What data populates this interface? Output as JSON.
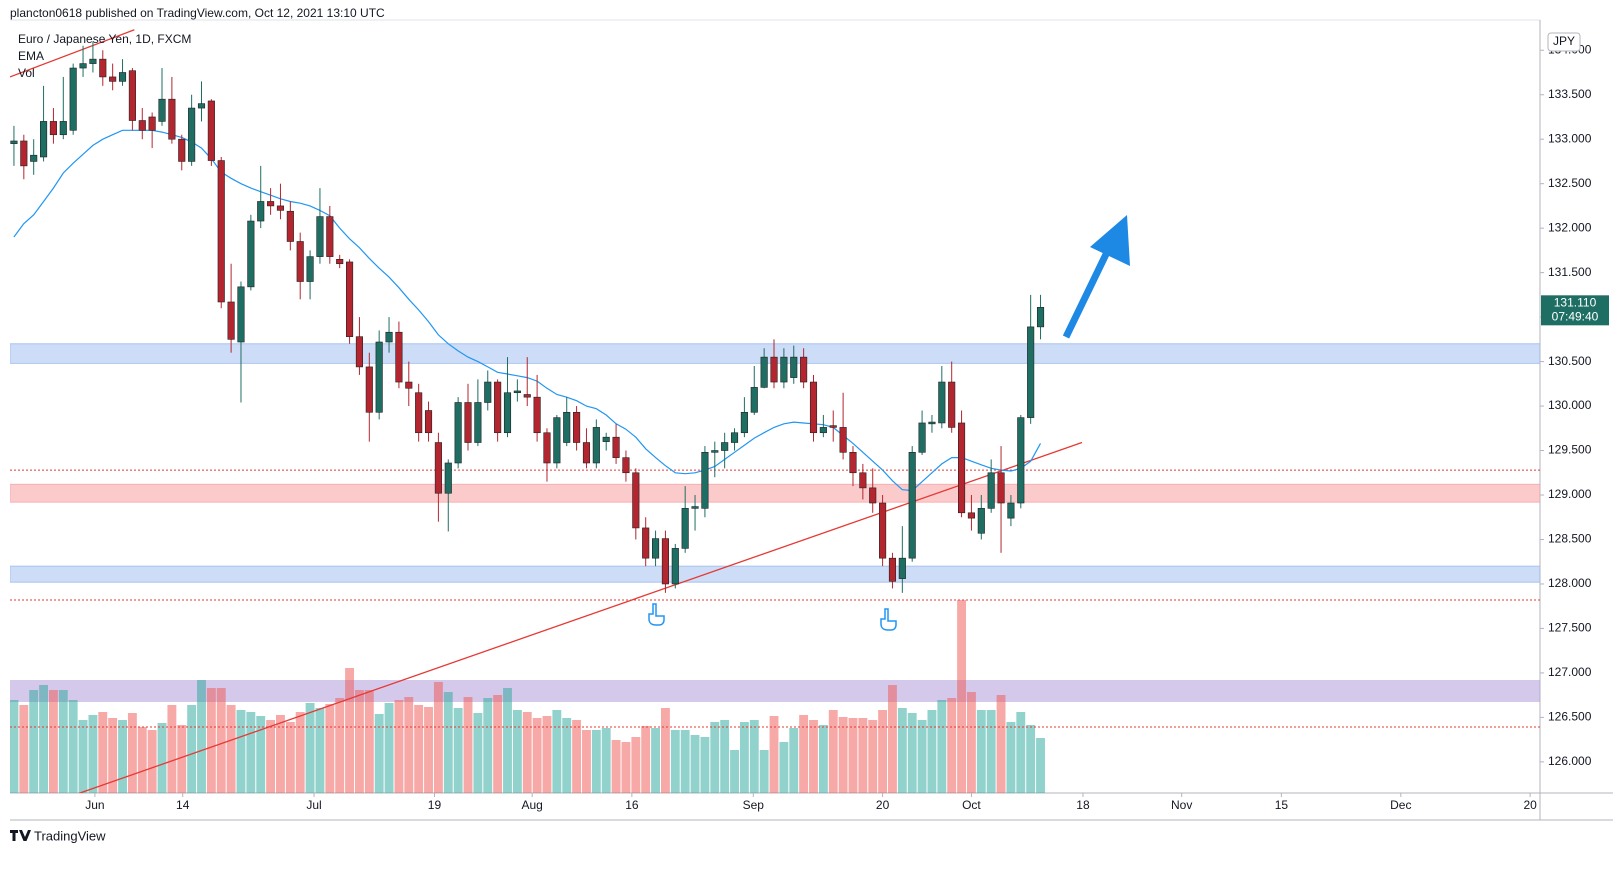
{
  "header": "plancton0618 published on TradingView.com, Oct 12, 2021 13:10 UTC",
  "footer": "TradingView",
  "chart_data": {
    "type": "candlestick",
    "title": "Euro / Japanese Yen, 1D, FXCM",
    "indicators": [
      "EMA",
      "Vol"
    ],
    "currency": "JPY",
    "up_color": "#1e6e64",
    "down_color": "#b3262f",
    "ema_color": "#2196f3",
    "xlim": [
      -0.4,
      154.6
    ],
    "ylim": [
      125.65,
      134.34
    ],
    "vlim": [
      0,
      200
    ],
    "grid": false,
    "xticks": [
      {
        "value": 8.2,
        "label": "Jun"
      },
      {
        "value": 17.1,
        "label": "14"
      },
      {
        "value": 30.4,
        "label": "Jul"
      },
      {
        "value": 42.6,
        "label": "19"
      },
      {
        "value": 52.5,
        "label": "Aug"
      },
      {
        "value": 62.6,
        "label": "16"
      },
      {
        "value": 74.9,
        "label": "Sep"
      },
      {
        "value": 88,
        "label": "20"
      },
      {
        "value": 97,
        "label": "Oct"
      },
      {
        "value": 108.3,
        "label": "18"
      },
      {
        "value": 118.3,
        "label": "Nov"
      },
      {
        "value": 128.4,
        "label": "15"
      },
      {
        "value": 140.5,
        "label": "Dec"
      },
      {
        "value": 153.6,
        "label": "20"
      }
    ],
    "yticks": [
      {
        "value": 134,
        "label": "134.000"
      },
      {
        "value": 133.5,
        "label": "133.500"
      },
      {
        "value": 133,
        "label": "133.000"
      },
      {
        "value": 132.5,
        "label": "132.500"
      },
      {
        "value": 132,
        "label": "132.000"
      },
      {
        "value": 131.5,
        "label": "131.500"
      },
      {
        "value": 131,
        "label": "131.000"
      },
      {
        "value": 130.5,
        "label": "130.500"
      },
      {
        "value": 130,
        "label": "130.000"
      },
      {
        "value": 129.5,
        "label": "129.500"
      },
      {
        "value": 129,
        "label": "129.000"
      },
      {
        "value": 128.5,
        "label": "128.500"
      },
      {
        "value": 128,
        "label": "128.000"
      },
      {
        "value": 127.5,
        "label": "127.500"
      },
      {
        "value": 127,
        "label": "127.000"
      },
      {
        "value": 126.5,
        "label": "126.500"
      },
      {
        "value": 126,
        "label": "126.000"
      }
    ],
    "last_price": {
      "value": 131.11,
      "label": "131.110"
    },
    "countdown": "07:49:40",
    "open": [
      132.95,
      132.98,
      132.75,
      132.8,
      133.2,
      133.05,
      133.1,
      133.8,
      133.85,
      133.9,
      133.7,
      133.65,
      133.77,
      133.21,
      133.25,
      133.2,
      133.45,
      133.0,
      132.75,
      133.35,
      133.43,
      132.76,
      131.17,
      130.72,
      131.34,
      132.08,
      132.3,
      132.25,
      132.19,
      131.85,
      131.4,
      131.68,
      132.13,
      131.65,
      131.62,
      130.78,
      130.44,
      129.93,
      130.72,
      130.83,
      130.27,
      130.15,
      129.95,
      129.59,
      129.02,
      129.36,
      130.04,
      129.59,
      130.04,
      130.27,
      129.7,
      130.15,
      130.13,
      130.1,
      129.7,
      129.36,
      129.59,
      129.93,
      129.59,
      129.36,
      129.6,
      129.65,
      129.42,
      129.25,
      128.63,
      128.29,
      128.51,
      128.0,
      128.4,
      128.85,
      128.85,
      129.48,
      129.5,
      129.59,
      129.7,
      129.93,
      130.21,
      130.55,
      130.27,
      130.32,
      130.55,
      130.27,
      129.7,
      129.78,
      129.76,
      129.48,
      129.25,
      129.08,
      128.91,
      128.29,
      128.06,
      128.29,
      129.48,
      129.8,
      129.81,
      130.27,
      129.81,
      128.8,
      128.57,
      128.85,
      129.25,
      128.74,
      128.91,
      129.87,
      130.89
    ],
    "high": [
      133.15,
      133.05,
      133.0,
      133.6,
      133.35,
      133.7,
      133.85,
      134.05,
      134.1,
      134.0,
      133.85,
      133.9,
      133.8,
      133.35,
      133.3,
      133.8,
      133.7,
      133.05,
      133.5,
      133.65,
      133.45,
      132.8,
      131.6,
      131.4,
      132.15,
      132.7,
      132.45,
      132.5,
      132.3,
      131.95,
      131.75,
      132.45,
      132.25,
      131.7,
      131.65,
      131.0,
      130.6,
      130.85,
      131.0,
      130.95,
      130.5,
      130.25,
      130.05,
      129.7,
      129.4,
      130.1,
      130.25,
      130.3,
      130.4,
      130.3,
      130.55,
      130.3,
      130.55,
      130.35,
      129.75,
      129.9,
      130.1,
      130.0,
      129.75,
      129.85,
      129.7,
      129.8,
      129.5,
      129.3,
      128.75,
      128.6,
      128.6,
      128.45,
      129.1,
      129.0,
      129.55,
      129.6,
      129.7,
      129.75,
      130.1,
      130.45,
      130.65,
      130.75,
      130.65,
      130.68,
      130.65,
      130.35,
      129.9,
      129.95,
      130.15,
      129.55,
      129.35,
      129.3,
      129.0,
      128.35,
      128.65,
      129.55,
      129.95,
      129.9,
      130.45,
      130.5,
      129.95,
      129.0,
      129.0,
      129.4,
      129.55,
      129.0,
      129.9,
      131.25,
      131.25
    ],
    "low": [
      132.7,
      132.55,
      132.6,
      132.75,
      132.95,
      133.0,
      133.05,
      133.7,
      133.75,
      133.6,
      133.55,
      133.6,
      133.1,
      133.0,
      132.9,
      133.15,
      132.95,
      132.65,
      132.7,
      133.2,
      132.7,
      131.1,
      130.6,
      130.04,
      131.3,
      132.0,
      132.15,
      132.1,
      131.75,
      131.2,
      131.2,
      131.6,
      131.6,
      131.55,
      130.7,
      130.35,
      129.6,
      129.85,
      130.6,
      130.2,
      130.0,
      129.6,
      129.6,
      128.7,
      128.59,
      129.3,
      129.5,
      129.55,
      129.95,
      129.6,
      129.65,
      130.05,
      130.0,
      129.6,
      129.15,
      129.3,
      129.55,
      129.5,
      129.3,
      129.3,
      129.5,
      129.35,
      129.15,
      128.5,
      128.2,
      128.2,
      127.9,
      127.95,
      128.35,
      128.6,
      128.75,
      129.2,
      129.3,
      129.5,
      129.65,
      129.9,
      130.2,
      130.2,
      130.2,
      130.25,
      130.2,
      129.6,
      129.65,
      129.6,
      129.4,
      129.1,
      128.95,
      128.8,
      128.2,
      127.95,
      127.9,
      128.25,
      129.45,
      129.7,
      129.75,
      129.7,
      128.75,
      128.6,
      128.5,
      128.8,
      128.35,
      128.65,
      128.85,
      129.8,
      130.75
    ],
    "close": [
      132.98,
      132.7,
      132.82,
      133.2,
      133.05,
      133.2,
      133.8,
      133.85,
      133.9,
      133.7,
      133.65,
      133.75,
      133.21,
      133.1,
      133.1,
      133.45,
      133.0,
      132.75,
      133.35,
      133.4,
      132.76,
      131.17,
      130.75,
      131.34,
      132.08,
      132.3,
      132.25,
      132.2,
      131.85,
      131.4,
      131.68,
      132.13,
      131.68,
      131.6,
      130.78,
      130.44,
      129.93,
      130.72,
      130.83,
      130.27,
      130.2,
      129.7,
      129.7,
      129.02,
      129.36,
      130.04,
      129.59,
      130.04,
      130.27,
      129.7,
      130.15,
      130.17,
      130.1,
      129.7,
      129.36,
      129.87,
      129.93,
      129.59,
      129.36,
      129.76,
      129.65,
      129.42,
      129.25,
      128.63,
      128.29,
      128.51,
      128.0,
      128.4,
      128.85,
      128.87,
      129.48,
      129.5,
      129.59,
      129.7,
      129.93,
      130.21,
      130.55,
      130.27,
      130.55,
      130.55,
      130.27,
      129.7,
      129.76,
      129.76,
      129.48,
      129.25,
      129.08,
      128.91,
      128.29,
      128.03,
      128.29,
      129.48,
      129.81,
      129.82,
      130.27,
      129.76,
      128.8,
      128.74,
      128.85,
      129.25,
      128.91,
      128.91,
      129.87,
      130.89,
      131.11
    ],
    "volume": [
      93,
      88,
      103,
      108,
      103,
      103,
      93,
      73,
      78,
      81,
      75,
      73,
      80,
      66,
      63,
      70,
      88,
      68,
      88,
      113,
      105,
      105,
      88,
      83,
      81,
      77,
      73,
      78,
      71,
      81,
      90,
      85,
      89,
      95,
      125,
      103,
      103,
      79,
      90,
      93,
      96,
      88,
      86,
      111,
      101,
      85,
      96,
      80,
      95,
      98,
      105,
      83,
      81,
      75,
      77,
      83,
      75,
      73,
      63,
      63,
      65,
      53,
      51,
      56,
      67,
      65,
      85,
      63,
      63,
      58,
      56,
      71,
      73,
      43,
      71,
      73,
      43,
      77,
      51,
      65,
      78,
      73,
      68,
      83,
      76,
      75,
      75,
      73,
      83,
      108,
      85,
      80,
      73,
      83,
      93,
      95,
      193,
      101,
      83,
      83,
      98,
      71,
      81,
      68,
      55
    ],
    "ema": [
      131.9,
      132.05,
      132.15,
      132.3,
      132.45,
      132.62,
      132.73,
      132.83,
      132.93,
      133.0,
      133.05,
      133.1,
      133.1,
      133.1,
      133.1,
      133.08,
      133.05,
      133.02,
      132.97,
      132.9,
      132.78,
      132.63,
      132.56,
      132.5,
      132.45,
      132.41,
      132.37,
      132.33,
      132.3,
      132.28,
      132.25,
      132.2,
      132.14,
      132.0,
      131.88,
      131.78,
      131.66,
      131.55,
      131.45,
      131.33,
      131.2,
      131.08,
      130.95,
      130.8,
      130.7,
      130.62,
      130.55,
      130.5,
      130.44,
      130.38,
      130.36,
      130.34,
      130.32,
      130.28,
      130.2,
      130.13,
      130.1,
      130.06,
      130.0,
      129.97,
      129.9,
      129.8,
      129.74,
      129.65,
      129.52,
      129.42,
      129.33,
      129.25,
      129.24,
      129.25,
      129.28,
      129.32,
      129.4,
      129.48,
      129.56,
      129.64,
      129.7,
      129.76,
      129.8,
      129.82,
      129.81,
      129.8,
      129.79,
      129.76,
      129.67,
      129.58,
      129.48,
      129.38,
      129.28,
      129.16,
      129.06,
      129.05,
      129.15,
      129.25,
      129.35,
      129.42,
      129.42,
      129.38,
      129.34,
      129.3,
      129.28,
      129.27,
      129.3,
      129.38,
      129.58
    ],
    "zones": [
      {
        "from": 130.48,
        "to": 130.7,
        "color": "#c5d8f6"
      },
      {
        "from": 128.92,
        "to": 129.12,
        "color": "#fbc2c4"
      },
      {
        "from": 128.02,
        "to": 128.2,
        "color": "#c5d8f6"
      }
    ],
    "levels": [
      129.28,
      127.82
    ],
    "volume_zone": [
      91,
      113
    ],
    "volume_level": 66,
    "trendlines": [
      {
        "x": [
          5.4,
          108.2
        ],
        "y": [
          125.6,
          129.59
        ]
      },
      {
        "x": [
          -0.4,
          12.2
        ],
        "y": [
          133.7,
          134.23
        ]
      }
    ]
  }
}
